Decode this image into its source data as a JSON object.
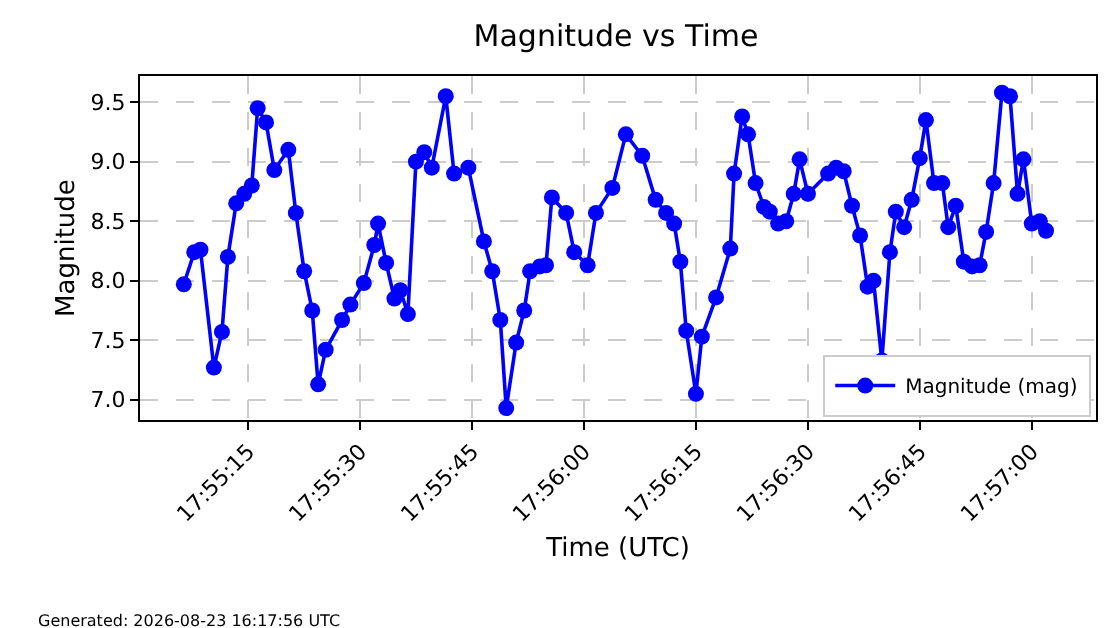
{
  "chart_data": {
    "type": "line",
    "title": "Magnitude vs Time",
    "xlabel": "Time (UTC)",
    "ylabel": "Magnitude",
    "annotations": [
      "Generated: 2026-08-23 16:17:56 UTC"
    ],
    "x": [
      17.91844,
      17.91883,
      17.91906,
      17.91956,
      17.91986,
      17.92008,
      17.92039,
      17.92069,
      17.92097,
      17.92119,
      17.9215,
      17.92181,
      17.92233,
      17.92261,
      17.92292,
      17.92322,
      17.92344,
      17.92372,
      17.92433,
      17.92464,
      17.92514,
      17.92553,
      17.92567,
      17.92597,
      17.92628,
      17.9265,
      17.92678,
      17.92708,
      17.92739,
      17.92767,
      17.92819,
      17.9285,
      17.92903,
      17.92961,
      17.92992,
      17.93022,
      17.93044,
      17.93081,
      17.93111,
      17.93133,
      17.93169,
      17.93192,
      17.93214,
      17.93267,
      17.93297,
      17.93347,
      17.93378,
      17.93439,
      17.93489,
      17.9355,
      17.936,
      17.93639,
      17.93669,
      17.93692,
      17.93714,
      17.9375,
      17.93772,
      17.93825,
      17.93878,
      17.93892,
      17.93922,
      17.93944,
      17.93972,
      17.94003,
      17.94025,
      17.94056,
      17.94086,
      17.94114,
      17.94136,
      17.94167,
      17.94242,
      17.94272,
      17.943,
      17.94331,
      17.94361,
      17.94389,
      17.94411,
      17.94442,
      17.94472,
      17.94494,
      17.94525,
      17.94553,
      17.94583,
      17.94606,
      17.94636,
      17.94667,
      17.94689,
      17.94717,
      17.94747,
      17.94778,
      17.94806,
      17.9483,
      17.94858,
      17.94889,
      17.94919,
      17.94947,
      17.94969,
      17.95,
      17.9503,
      17.95053
    ],
    "series": [
      {
        "name": "Magnitude (mag)",
        "color": "#0000ff",
        "values": [
          7.97,
          8.24,
          8.26,
          7.27,
          7.57,
          8.2,
          8.65,
          8.73,
          8.8,
          9.45,
          9.33,
          8.93,
          9.1,
          8.57,
          8.08,
          7.75,
          7.13,
          7.42,
          7.67,
          7.8,
          7.98,
          8.3,
          8.48,
          8.15,
          7.85,
          7.92,
          7.72,
          9.0,
          9.08,
          8.95,
          9.55,
          8.9,
          8.95,
          8.33,
          8.08,
          7.67,
          6.93,
          7.48,
          7.75,
          8.08,
          8.12,
          8.13,
          8.7,
          8.57,
          8.24,
          8.13,
          8.57,
          8.78,
          9.23,
          9.05,
          8.68,
          8.57,
          8.48,
          8.16,
          7.58,
          7.05,
          7.53,
          7.86,
          8.27,
          8.9,
          9.38,
          9.23,
          8.82,
          8.62,
          8.58,
          8.48,
          8.5,
          8.73,
          9.02,
          8.73,
          8.9,
          8.95,
          8.92,
          8.63,
          8.38,
          7.95,
          8.0,
          7.33,
          8.24,
          8.58,
          8.45,
          8.68,
          9.03,
          9.35,
          8.82,
          8.82,
          8.45,
          8.63,
          8.16,
          8.12,
          8.13,
          8.41,
          8.82,
          9.58,
          9.55,
          8.73,
          9.02,
          8.48,
          8.5,
          8.42
        ]
      }
    ],
    "xlim": [
      17.91681,
      17.95239
    ],
    "xticks": [
      {
        "value": 17.920833,
        "label": "17:55:15"
      },
      {
        "value": 17.925,
        "label": "17:55:30"
      },
      {
        "value": 17.929167,
        "label": "17:55:45"
      },
      {
        "value": 17.933333,
        "label": "17:56:00"
      },
      {
        "value": 17.9375,
        "label": "17:56:15"
      },
      {
        "value": 17.941667,
        "label": "17:56:30"
      },
      {
        "value": 17.945833,
        "label": "17:56:45"
      },
      {
        "value": 17.95,
        "label": "17:57:00"
      }
    ],
    "ylim": [
      6.83,
      9.72
    ],
    "yticks": [
      {
        "value": 7.0,
        "label": "7.0"
      },
      {
        "value": 7.5,
        "label": "7.5"
      },
      {
        "value": 8.0,
        "label": "8.0"
      },
      {
        "value": 8.5,
        "label": "8.5"
      },
      {
        "value": 9.0,
        "label": "9.0"
      },
      {
        "value": 9.5,
        "label": "9.5"
      }
    ],
    "grid": true,
    "legend": "bottom right",
    "marker": "circle",
    "line_style": "solid"
  }
}
